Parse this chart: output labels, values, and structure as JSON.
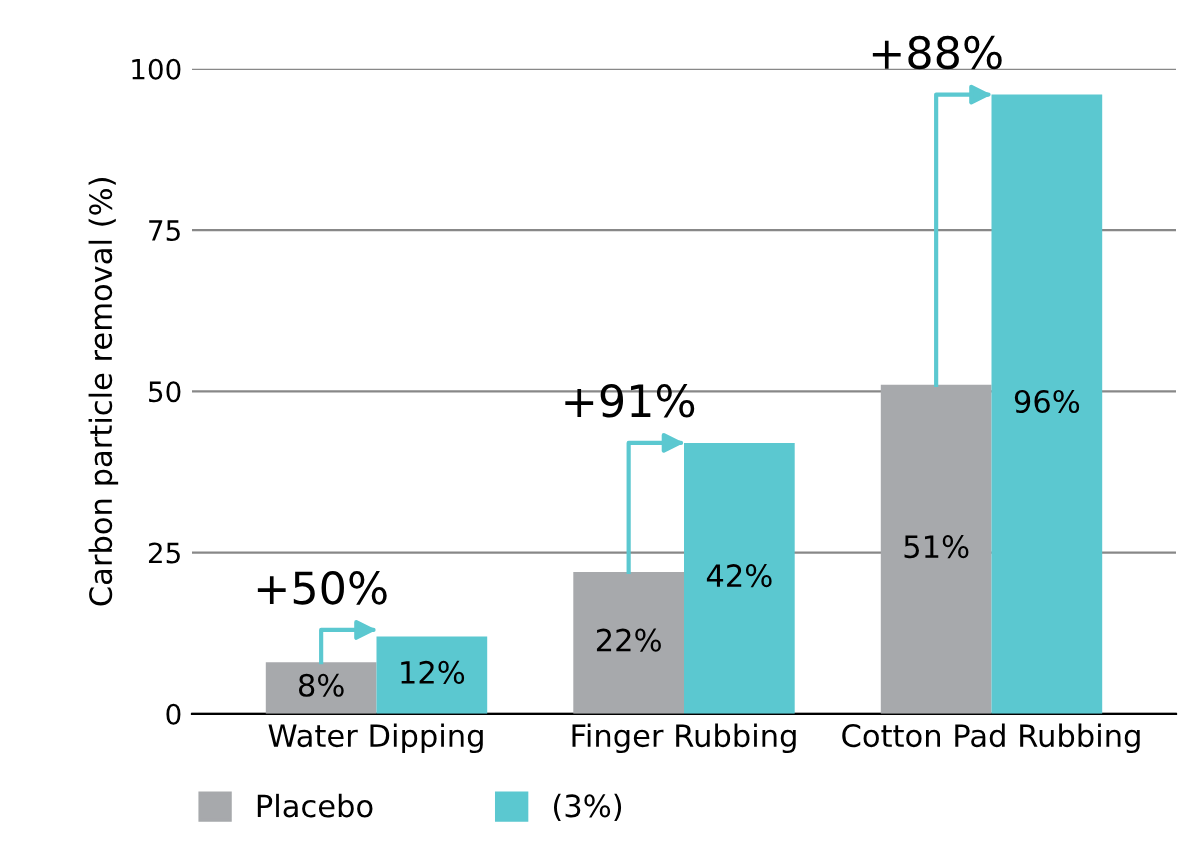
{
  "chart_data": {
    "type": "bar",
    "ylabel": "Carbon particle removal (%)",
    "categories": [
      "Water Dipping",
      "Finger Rubbing",
      "Cotton Pad Rubbing"
    ],
    "series": [
      {
        "name": "Placebo",
        "color": "#a7a9ac",
        "values": [
          8,
          22,
          51
        ],
        "value_labels": [
          "8%",
          "22%",
          "51%"
        ]
      },
      {
        "name": "(3%)",
        "color": "#5bc8d0",
        "values": [
          12,
          42,
          96
        ],
        "value_labels": [
          "12%",
          "42%",
          "96%"
        ]
      }
    ],
    "annotations": [
      {
        "text": "+50%",
        "x": "Water Dipping",
        "y": 12
      },
      {
        "text": "+91%",
        "x": "Finger Rubbing",
        "y": 42
      },
      {
        "text": "+88%",
        "x": "Cotton Pad Rubbing",
        "y": 96
      }
    ],
    "ylim": [
      0,
      100
    ],
    "yticks": [
      0,
      25,
      50,
      75,
      100
    ],
    "grid": "y",
    "legend": "bottom left"
  }
}
